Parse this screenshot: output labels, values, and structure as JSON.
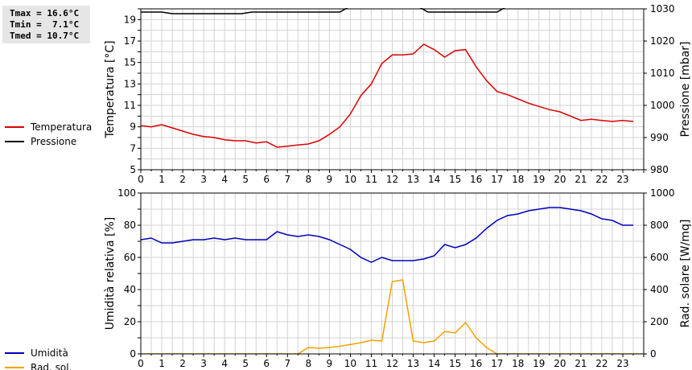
{
  "stats": {
    "tmax": "Tmax = 16.6°C",
    "tmin": "Tmin =  7.1°C",
    "tmed": "Tmed = 10.7°C"
  },
  "colors": {
    "temperature": "#dd0000",
    "pressure": "#000000",
    "humidity": "#0000bb",
    "radiation": "#f5a000",
    "grid": "#d3d3d3"
  },
  "chart_data": [
    {
      "type": "line",
      "x_ticks": [
        "0",
        "1",
        "2",
        "3",
        "4",
        "5",
        "6",
        "7",
        "8",
        "9",
        "10",
        "11",
        "12",
        "13",
        "14",
        "15",
        "16",
        "17",
        "18",
        "19",
        "20",
        "21",
        "22",
        "23"
      ],
      "xlim": [
        0,
        24
      ],
      "ylabel": "Temperatura [°C]",
      "ylabel_right": "Pressione [mbar]",
      "y_ticks": [
        "5",
        "7",
        "9",
        "11",
        "13",
        "15",
        "17",
        "19"
      ],
      "ylim": [
        5,
        20
      ],
      "y2_ticks": [
        "980",
        "990",
        "1000",
        "1010",
        "1020",
        "1030"
      ],
      "y2lim": [
        980,
        1030
      ],
      "legend": [
        {
          "label": "Temperatura",
          "color": "#dd0000"
        },
        {
          "label": "Pressione",
          "color": "#000000"
        }
      ],
      "series": [
        {
          "name": "Temperatura",
          "axis": "left",
          "color": "#dd0000",
          "x": [
            0,
            0.5,
            1,
            1.5,
            2,
            2.5,
            3,
            3.5,
            4,
            4.5,
            5,
            5.5,
            6,
            6.5,
            7,
            7.5,
            8,
            8.5,
            9,
            9.5,
            10,
            10.5,
            11,
            11.5,
            12,
            12.5,
            13,
            13.5,
            14,
            14.5,
            15,
            15.5,
            16,
            16.5,
            17,
            17.5,
            18,
            18.5,
            19,
            19.5,
            20,
            20.5,
            21,
            21.5,
            22,
            22.5,
            23,
            23.5
          ],
          "values": [
            9.1,
            9.0,
            9.2,
            8.9,
            8.6,
            8.3,
            8.1,
            8.0,
            7.8,
            7.7,
            7.7,
            7.5,
            7.6,
            7.1,
            7.2,
            7.3,
            7.4,
            7.7,
            8.3,
            9.0,
            10.2,
            11.9,
            13.0,
            14.9,
            15.7,
            15.7,
            15.8,
            16.7,
            16.2,
            15.5,
            16.1,
            16.2,
            14.6,
            13.3,
            12.3,
            12.0,
            11.6,
            11.2,
            10.9,
            10.6,
            10.4,
            10.0,
            9.6,
            9.7,
            9.6,
            9.5,
            9.6,
            9.5
          ]
        },
        {
          "name": "Pressione",
          "axis": "right",
          "color": "#000000",
          "x": [
            0,
            1,
            1.5,
            2,
            4.8,
            5.3,
            9.5,
            9.9,
            13.3,
            13.7,
            17,
            17.4,
            24
          ],
          "values": [
            1029,
            1029,
            1028.5,
            1028.5,
            1028.5,
            1029,
            1029,
            1030.5,
            1030.5,
            1029,
            1029,
            1030.5,
            1030.5
          ]
        }
      ]
    },
    {
      "type": "line",
      "x_ticks": [
        "0",
        "1",
        "2",
        "3",
        "4",
        "5",
        "6",
        "7",
        "8",
        "9",
        "10",
        "11",
        "12",
        "13",
        "14",
        "15",
        "16",
        "17",
        "18",
        "19",
        "20",
        "21",
        "22",
        "23"
      ],
      "xlim": [
        0,
        24
      ],
      "ylabel": "Umidità relativa [%]",
      "ylabel_right": "Rad. solare [W/mq]",
      "y_ticks": [
        "0",
        "20",
        "40",
        "60",
        "80",
        "100"
      ],
      "ylim": [
        0,
        100
      ],
      "y2_ticks": [
        "0",
        "200",
        "400",
        "600",
        "800",
        "1000"
      ],
      "y2lim": [
        0,
        1000
      ],
      "legend": [
        {
          "label": "Umidità",
          "color": "#0000bb"
        },
        {
          "label": "Rad. sol.",
          "color": "#f5a000"
        }
      ],
      "series": [
        {
          "name": "Umidità",
          "axis": "left",
          "color": "#0000bb",
          "x": [
            0,
            0.5,
            1,
            1.5,
            2,
            2.5,
            3,
            3.5,
            4,
            4.5,
            5,
            5.5,
            6,
            6.5,
            7,
            7.5,
            8,
            8.5,
            9,
            9.5,
            10,
            10.5,
            11,
            11.5,
            12,
            12.5,
            13,
            13.5,
            14,
            14.5,
            15,
            15.5,
            16,
            16.5,
            17,
            17.5,
            18,
            18.5,
            19,
            19.5,
            20,
            20.5,
            21,
            21.5,
            22,
            22.5,
            23,
            23.5
          ],
          "values": [
            71,
            72,
            69,
            69,
            70,
            71,
            71,
            72,
            71,
            72,
            71,
            71,
            71,
            76,
            74,
            73,
            74,
            73,
            71,
            68,
            65,
            60,
            57,
            60,
            58,
            58,
            58,
            59,
            61,
            68,
            66,
            68,
            72,
            78,
            83,
            86,
            87,
            89,
            90,
            91,
            91,
            90,
            89,
            87,
            84,
            83,
            80,
            80
          ]
        },
        {
          "name": "Rad. sol.",
          "axis": "right",
          "color": "#f5a000",
          "x": [
            0,
            7.5,
            8,
            8.5,
            9,
            9.5,
            10,
            10.5,
            11,
            11.5,
            12,
            12.5,
            13,
            13.5,
            14,
            14.5,
            15,
            15.5,
            16,
            16.5,
            17,
            24
          ],
          "values": [
            0,
            0,
            40,
            35,
            40,
            48,
            58,
            70,
            85,
            80,
            450,
            460,
            80,
            70,
            80,
            140,
            130,
            195,
            100,
            40,
            0,
            0
          ]
        }
      ]
    }
  ]
}
